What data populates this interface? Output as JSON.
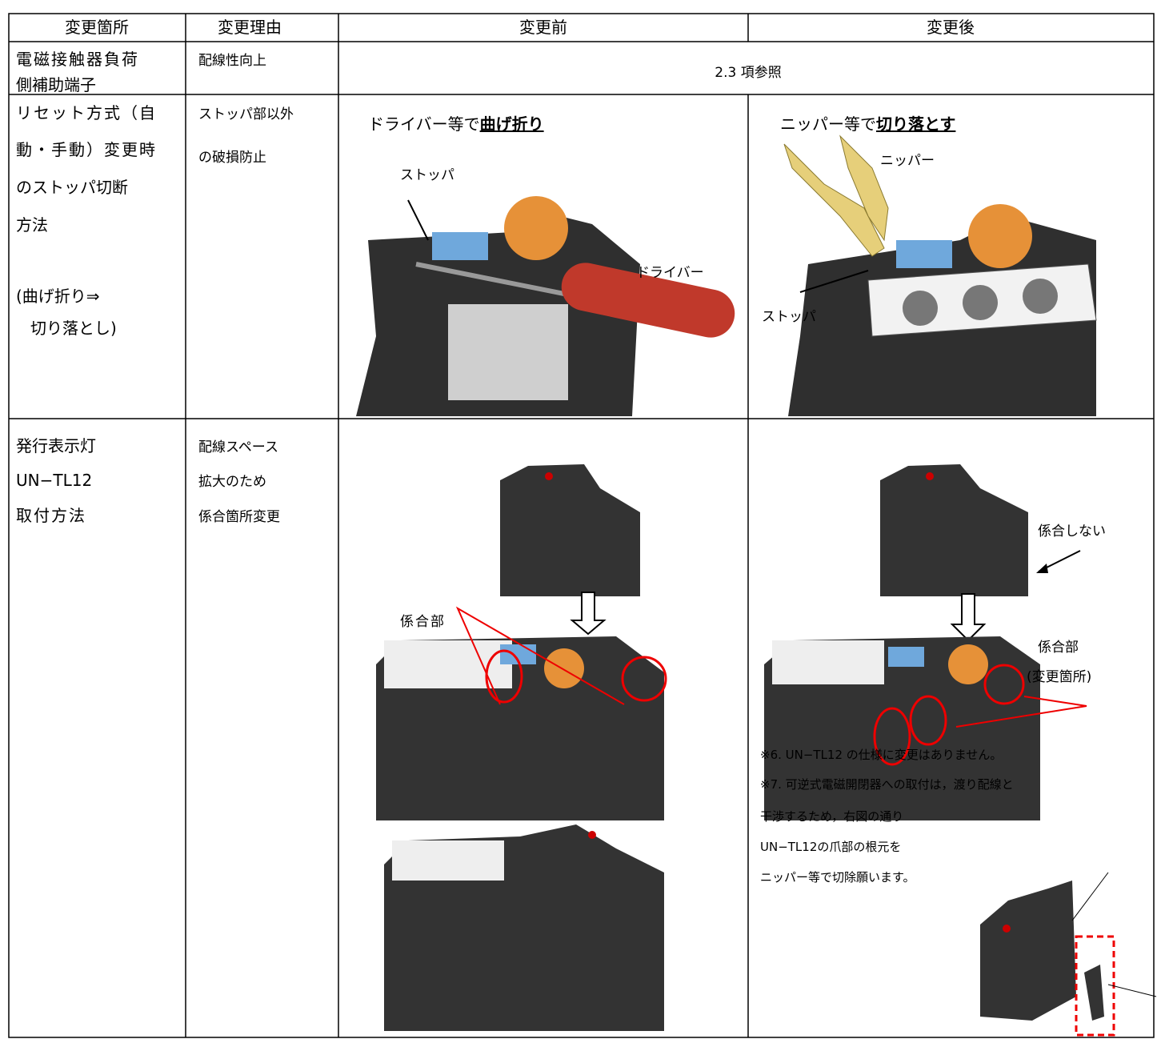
{
  "header": [
    "変更箇所",
    "変更理由",
    "変更前",
    "変更後"
  ],
  "rows": [
    {
      "location": [
        "電磁接触器負荷",
        "側補助端子"
      ],
      "reason": [
        "配線性向上"
      ],
      "change": "2.3 項参照"
    },
    {
      "location": [
        "リセット方式（自",
        "動・手動）変更時",
        "のストッパ切断",
        "方法"
      ],
      "location_note": [
        "(曲げ折り⇒",
        "切り落とし)"
      ],
      "reason": [
        "ストッパ部以外",
        "の破損防止"
      ],
      "before": {
        "heading": "ドライバー等で",
        "emphasis": "曲げ折り",
        "labels": [
          "ストッパ",
          "ドライバー"
        ]
      },
      "after": {
        "heading": "ニッパー等で",
        "emphasis": "切り落とす",
        "labels": [
          "ニッパー",
          "ストッパ"
        ]
      }
    },
    {
      "location": [
        "発行表示灯",
        "UN−TL12",
        "取付方法"
      ],
      "reason": [
        "配線スペース",
        "拡大のため",
        "係合箇所変更"
      ],
      "before": {
        "labels": [
          "係合部"
        ]
      },
      "after": {
        "labels": [
          "係合しない",
          "係合部",
          "(変更箇所)"
        ],
        "notes": [
          "※6. UN−TL12 の仕様に変更はありません。",
          "※7. 可逆式電磁開閉器への取付は，渡り配線と",
          "干渉するため，右図の通り",
          "UN−TL12の爪部の根元を",
          "ニッパー等で切除願います。"
        ]
      }
    }
  ]
}
